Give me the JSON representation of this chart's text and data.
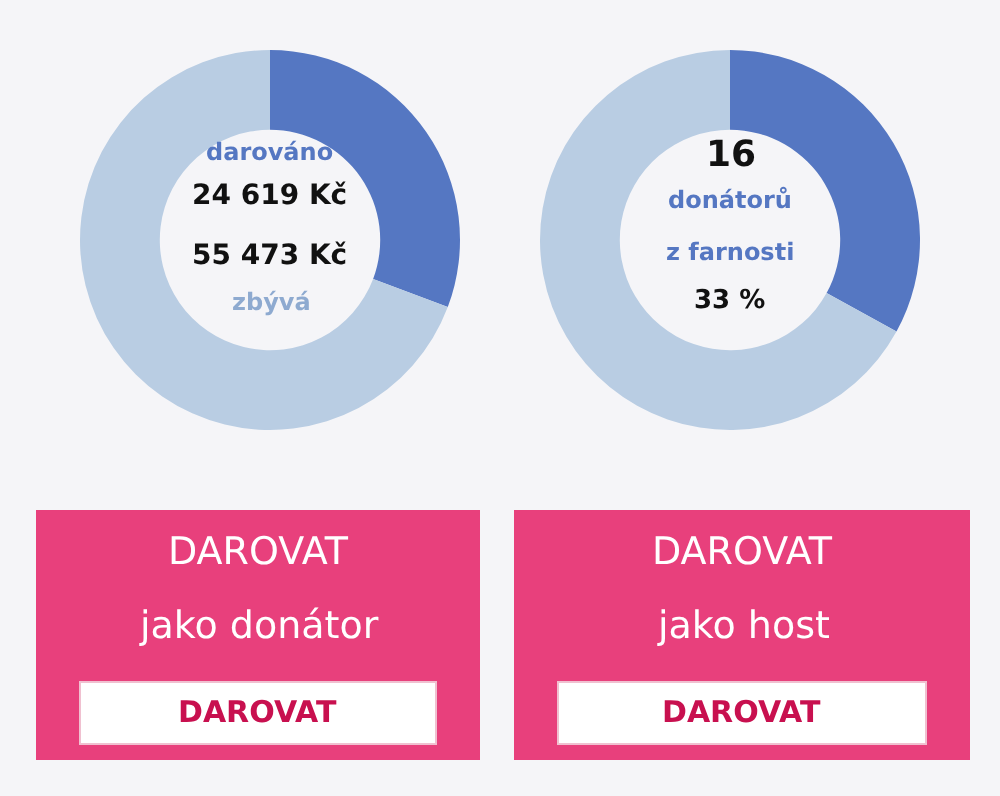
{
  "chart_data": [
    {
      "type": "donut",
      "categories": [
        "darováno",
        "zbývá"
      ],
      "values": [
        24619,
        55473
      ],
      "colors": [
        "#5577c2",
        "#b9cde3"
      ],
      "value_labels": [
        "24 619 Kč",
        "55 473 Kč"
      ]
    },
    {
      "type": "donut",
      "categories": [
        null,
        null
      ],
      "values": [
        33,
        67
      ],
      "colors": [
        "#5577c2",
        "#b9cde3"
      ],
      "annotations": [
        "16",
        "donátorů",
        "z farnosti",
        "33 %"
      ]
    },
    {
      "type": "other",
      "title": "DAROVAT",
      "subtitle": "jako donátor",
      "annotations": [
        "DAROVAT"
      ]
    },
    {
      "type": "other",
      "title": "DAROVAT",
      "subtitle": "jako host",
      "annotations": [
        "DAROVAT"
      ]
    }
  ]
}
